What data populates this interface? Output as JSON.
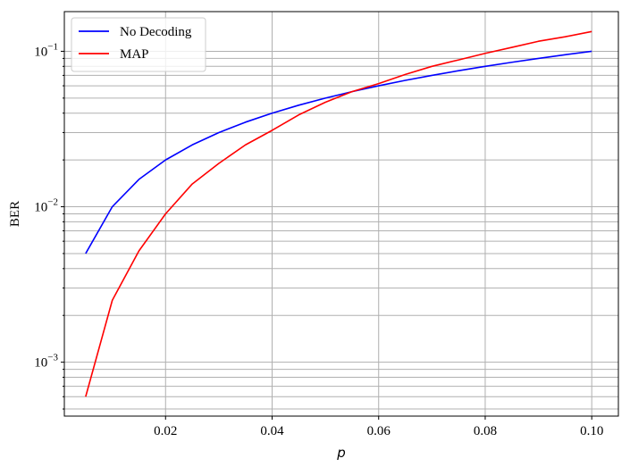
{
  "chart_data": {
    "type": "line",
    "xlabel": "p",
    "ylabel": "BER",
    "xlim": [
      0.001,
      0.105
    ],
    "ylim": [
      0.00045,
      0.18
    ],
    "yscale": "log",
    "grid": true,
    "legend_position": "top-left",
    "x_ticks": [
      0.02,
      0.04,
      0.06,
      0.08,
      0.1
    ],
    "x_tick_labels": [
      "0.02",
      "0.04",
      "0.06",
      "0.08",
      "0.10"
    ],
    "y_major_ticks": [
      0.001,
      0.01,
      0.1
    ],
    "y_tick_labels": [
      {
        "base": "10",
        "exp": "−3"
      },
      {
        "base": "10",
        "exp": "−2"
      },
      {
        "base": "10",
        "exp": "−1"
      }
    ],
    "x": [
      0.005,
      0.01,
      0.015,
      0.02,
      0.025,
      0.03,
      0.035,
      0.04,
      0.045,
      0.05,
      0.055,
      0.06,
      0.065,
      0.07,
      0.075,
      0.08,
      0.085,
      0.09,
      0.095,
      0.1
    ],
    "series": [
      {
        "name": "No Decoding",
        "color": "#0000ff",
        "values": [
          0.005,
          0.01,
          0.015,
          0.02,
          0.025,
          0.03,
          0.035,
          0.04,
          0.045,
          0.05,
          0.055,
          0.06,
          0.065,
          0.07,
          0.075,
          0.08,
          0.085,
          0.09,
          0.095,
          0.1
        ]
      },
      {
        "name": "MAP",
        "color": "#ff0000",
        "values": [
          0.0006,
          0.0025,
          0.0052,
          0.009,
          0.014,
          0.019,
          0.025,
          0.031,
          0.039,
          0.047,
          0.055,
          0.062,
          0.071,
          0.08,
          0.088,
          0.097,
          0.106,
          0.116,
          0.124,
          0.134
        ]
      }
    ]
  }
}
